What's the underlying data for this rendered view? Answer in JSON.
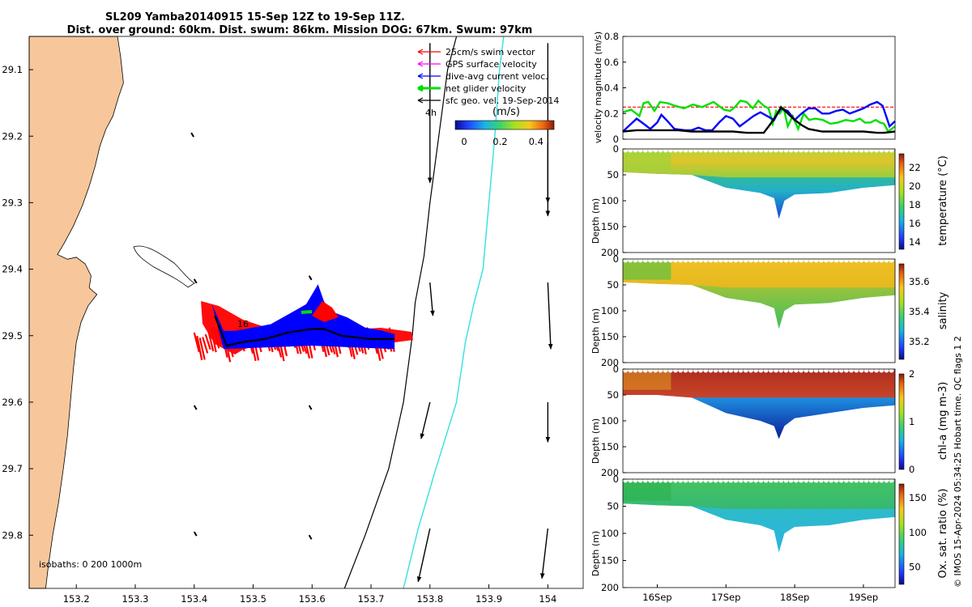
{
  "title": {
    "line1": "SL209 Yamba20140915 15-Sep 12Z to 19-Sep 11Z.",
    "line2": "Dist. over ground: 60km. Dist. swum: 86km. Mission DOG: 67km. Swum: 97km"
  },
  "footer_note": "© IMOS 15-Apr-2024 05:34:25 Hobart time. QC flags 1  2",
  "colors": {
    "land": "#f7c79b",
    "track_red": "#ff0000",
    "track_blue": "#0000ff",
    "track_green": "#00e000",
    "cyan_line": "#34e0e0",
    "velocity_ref": "#ff0000"
  },
  "chart_data": [
    {
      "type": "map",
      "ylim": [
        29.88,
        29.05
      ],
      "xlim": [
        153.12,
        154.06
      ],
      "x_ticks": [
        "153.2",
        "153.3",
        "153.4",
        "153.5",
        "153.6",
        "153.7",
        "153.8",
        "153.9",
        "154"
      ],
      "x_tick_values": [
        153.2,
        153.3,
        153.4,
        153.5,
        153.6,
        153.7,
        153.8,
        153.9,
        154.0
      ],
      "y_ticks": [
        "29.1",
        "29.2",
        "29.3",
        "29.4",
        "29.5",
        "29.6",
        "29.7",
        "29.8"
      ],
      "y_tick_values": [
        29.1,
        29.2,
        29.3,
        29.4,
        29.5,
        29.6,
        29.7,
        29.8
      ],
      "legend": [
        {
          "label": "25cm/s swim vector",
          "color": "#ff0000"
        },
        {
          "label": "GPS surface velocity",
          "color": "#ff00ff"
        },
        {
          "label": "dive-avg current veloc.",
          "color": "#0000ff"
        },
        {
          "label": "net glider velocity",
          "color": "#00e000"
        },
        {
          "label": "sfc geo. vel. 19-Sep-2014",
          "color": "#000000"
        }
      ],
      "colorbar": {
        "label": "(m/s)",
        "ticks": [
          "0",
          "0.2",
          "0.4"
        ],
        "tick_values": [
          0,
          0.2,
          0.4
        ],
        "range": [
          -0.05,
          0.5
        ]
      },
      "annotations": [
        "4h",
        "16"
      ],
      "isobath_label": "isobaths: 0   200  1000m",
      "coastline": [
        [
          153.27,
          29.05
        ],
        [
          153.275,
          29.08
        ],
        [
          153.28,
          29.12
        ],
        [
          153.272,
          29.14
        ],
        [
          153.262,
          29.17
        ],
        [
          153.25,
          29.19
        ],
        [
          153.24,
          29.215
        ],
        [
          153.232,
          29.245
        ],
        [
          153.222,
          29.275
        ],
        [
          153.21,
          29.305
        ],
        [
          153.195,
          29.335
        ],
        [
          153.18,
          29.36
        ],
        [
          153.168,
          29.378
        ],
        [
          153.185,
          29.385
        ],
        [
          153.2,
          29.382
        ],
        [
          153.215,
          29.392
        ],
        [
          153.225,
          29.41
        ],
        [
          153.222,
          29.428
        ],
        [
          153.228,
          29.433
        ],
        [
          153.235,
          29.438
        ],
        [
          153.22,
          29.455
        ],
        [
          153.208,
          29.48
        ],
        [
          153.2,
          29.51
        ],
        [
          153.195,
          29.55
        ],
        [
          153.19,
          29.6
        ],
        [
          153.185,
          29.65
        ],
        [
          153.178,
          29.7
        ],
        [
          153.17,
          29.75
        ],
        [
          153.16,
          29.8
        ],
        [
          153.152,
          29.85
        ],
        [
          153.148,
          29.88
        ]
      ],
      "isobath_200m": [
        [
          153.655,
          29.88
        ],
        [
          153.69,
          29.8
        ],
        [
          153.73,
          29.7
        ],
        [
          153.755,
          29.6
        ],
        [
          153.77,
          29.5
        ],
        [
          153.775,
          29.45
        ],
        [
          153.79,
          29.38
        ],
        [
          153.8,
          29.3
        ],
        [
          153.815,
          29.2
        ],
        [
          153.83,
          29.1
        ],
        [
          153.845,
          29.05
        ]
      ],
      "isobath_1000m": [
        [
          153.755,
          29.88
        ],
        [
          153.78,
          29.79
        ],
        [
          153.81,
          29.7
        ],
        [
          153.845,
          29.6
        ],
        [
          153.86,
          29.51
        ],
        [
          153.875,
          29.45
        ],
        [
          153.89,
          29.4
        ],
        [
          153.9,
          29.3
        ],
        [
          153.91,
          29.2
        ],
        [
          153.918,
          29.1
        ],
        [
          153.925,
          29.05
        ]
      ],
      "glider_track_blue": [
        [
          153.43,
          29.46
        ],
        [
          153.44,
          29.48
        ],
        [
          153.45,
          29.5
        ],
        [
          153.47,
          29.5
        ],
        [
          153.5,
          29.495
        ],
        [
          153.53,
          29.49
        ],
        [
          153.56,
          29.475
        ],
        [
          153.59,
          29.46
        ],
        [
          153.61,
          29.43
        ],
        [
          153.62,
          29.455
        ],
        [
          153.63,
          29.47
        ],
        [
          153.66,
          29.48
        ],
        [
          153.69,
          29.495
        ],
        [
          153.72,
          29.5
        ],
        [
          153.74,
          29.505
        ]
      ],
      "glider_track_black": [
        [
          153.435,
          29.47
        ],
        [
          153.455,
          29.515
        ],
        [
          153.48,
          29.51
        ],
        [
          153.52,
          29.505
        ],
        [
          153.56,
          29.495
        ],
        [
          153.6,
          29.49
        ],
        [
          153.62,
          29.49
        ],
        [
          153.65,
          29.5
        ],
        [
          153.7,
          29.505
        ],
        [
          153.74,
          29.505
        ]
      ],
      "current_vectors_start": [
        [
          153.8,
          29.06
        ],
        [
          154.0,
          29.06
        ],
        [
          154.0,
          29.21
        ],
        [
          153.8,
          29.42
        ],
        [
          154.0,
          29.42
        ],
        [
          153.8,
          29.6
        ],
        [
          154.0,
          29.6
        ],
        [
          153.8,
          29.79
        ],
        [
          154.0,
          29.79
        ]
      ],
      "current_vectors_end": [
        [
          153.8,
          29.27
        ],
        [
          154.0,
          29.3
        ],
        [
          154.0,
          29.32
        ],
        [
          153.805,
          29.47
        ],
        [
          154.005,
          29.52
        ],
        [
          153.785,
          29.655
        ],
        [
          154.0,
          29.66
        ],
        [
          153.78,
          29.87
        ],
        [
          153.99,
          29.865
        ]
      ],
      "small_vectors": [
        [
          153.395,
          29.195
        ],
        [
          153.4,
          29.415
        ],
        [
          153.595,
          29.41
        ],
        [
          153.4,
          29.605
        ],
        [
          153.595,
          29.605
        ],
        [
          153.4,
          29.795
        ],
        [
          153.595,
          29.8
        ]
      ]
    },
    {
      "type": "line",
      "ylabel": "velocity magnitude (m/s)",
      "ylim": [
        0,
        0.8
      ],
      "y_ticks": [
        "0",
        "0.2",
        "0.4",
        "0.6",
        "0.8"
      ],
      "y_tick_values": [
        0,
        0.2,
        0.4,
        0.6,
        0.8
      ],
      "x_ticks": [
        "16Sep",
        "17Sep",
        "18Sep",
        "19Sep"
      ],
      "xlim_days": [
        15.5,
        19.46
      ],
      "reference_line": 0.25,
      "series": [
        {
          "color": "#00e000",
          "x": [
            15.5,
            15.62,
            15.74,
            15.8,
            15.87,
            15.96,
            16.04,
            16.15,
            16.26,
            16.39,
            16.52,
            16.65,
            16.82,
            16.97,
            17.06,
            17.13,
            17.21,
            17.3,
            17.39,
            17.47,
            17.55,
            17.62,
            17.68,
            17.73,
            17.78,
            17.84,
            17.9,
            17.97,
            18.05,
            18.13,
            18.21,
            18.3,
            18.41,
            18.52,
            18.63,
            18.74,
            18.85,
            18.95,
            19.02,
            19.1,
            19.18,
            19.24,
            19.3,
            19.36,
            19.46
          ],
          "y": [
            0.21,
            0.23,
            0.18,
            0.28,
            0.29,
            0.22,
            0.29,
            0.28,
            0.26,
            0.24,
            0.27,
            0.25,
            0.29,
            0.23,
            0.22,
            0.25,
            0.3,
            0.29,
            0.24,
            0.3,
            0.26,
            0.24,
            0.12,
            0.22,
            0.2,
            0.24,
            0.1,
            0.18,
            0.08,
            0.2,
            0.15,
            0.16,
            0.15,
            0.12,
            0.13,
            0.15,
            0.14,
            0.16,
            0.13,
            0.13,
            0.15,
            0.13,
            0.12,
            0.06,
            0.1
          ]
        },
        {
          "color": "#0000ff",
          "x": [
            15.5,
            15.6,
            15.7,
            15.8,
            15.9,
            16.0,
            16.06,
            16.15,
            16.25,
            16.4,
            16.5,
            16.6,
            16.7,
            16.8,
            16.9,
            17.0,
            17.1,
            17.2,
            17.3,
            17.4,
            17.5,
            17.6,
            17.7,
            17.75,
            17.8,
            17.9,
            18.0,
            18.1,
            18.2,
            18.3,
            18.4,
            18.5,
            18.6,
            18.7,
            18.8,
            18.9,
            19.0,
            19.1,
            19.2,
            19.28,
            19.33,
            19.38,
            19.46
          ],
          "y": [
            0.06,
            0.11,
            0.16,
            0.12,
            0.08,
            0.13,
            0.19,
            0.14,
            0.08,
            0.07,
            0.07,
            0.09,
            0.07,
            0.07,
            0.13,
            0.18,
            0.16,
            0.1,
            0.14,
            0.18,
            0.21,
            0.18,
            0.15,
            0.2,
            0.24,
            0.22,
            0.15,
            0.2,
            0.24,
            0.24,
            0.2,
            0.2,
            0.22,
            0.23,
            0.2,
            0.22,
            0.24,
            0.27,
            0.29,
            0.26,
            0.18,
            0.1,
            0.14
          ]
        },
        {
          "color": "#000000",
          "x": [
            15.5,
            15.7,
            15.9,
            16.1,
            16.3,
            16.5,
            16.7,
            16.9,
            17.1,
            17.3,
            17.5,
            17.55,
            17.65,
            17.75,
            17.8,
            17.9,
            18.0,
            18.1,
            18.2,
            18.4,
            18.6,
            18.8,
            19.0,
            19.2,
            19.3,
            19.46
          ],
          "y": [
            0.06,
            0.07,
            0.07,
            0.07,
            0.07,
            0.06,
            0.06,
            0.06,
            0.06,
            0.05,
            0.05,
            0.05,
            0.12,
            0.2,
            0.25,
            0.2,
            0.15,
            0.11,
            0.08,
            0.06,
            0.06,
            0.06,
            0.06,
            0.05,
            0.05,
            0.06
          ]
        }
      ]
    },
    {
      "type": "heatmap",
      "name": "temperature",
      "label": "temperature (°C)",
      "ylabel": "Depth (m)",
      "ylim": [
        200,
        0
      ],
      "y_ticks": [
        "0",
        "50",
        "100",
        "150",
        "200"
      ],
      "colorbar_ticks": [
        "14",
        "16",
        "18",
        "20",
        "22"
      ],
      "colorbar_values": [
        14,
        16,
        18,
        20,
        22
      ],
      "crange": [
        13.2,
        23.5
      ],
      "profile_depth": [
        [
          15.5,
          45
        ],
        [
          16.0,
          48
        ],
        [
          16.5,
          50
        ],
        [
          17.0,
          75
        ],
        [
          17.5,
          85
        ],
        [
          17.7,
          95
        ],
        [
          17.77,
          135
        ],
        [
          17.85,
          100
        ],
        [
          18.0,
          88
        ],
        [
          18.5,
          85
        ],
        [
          19.0,
          75
        ],
        [
          19.46,
          70
        ]
      ],
      "color_stops": [
        [
          0,
          "#7fcf3a"
        ],
        [
          0.3,
          "#f0c020"
        ],
        [
          0.7,
          "#e8c020"
        ],
        [
          1,
          "#e8c030"
        ]
      ]
    },
    {
      "type": "heatmap",
      "name": "salinity",
      "label": "salinity",
      "ylabel": "Depth (m)",
      "ylim": [
        200,
        0
      ],
      "y_ticks": [
        "0",
        "50",
        "100",
        "150",
        "200"
      ],
      "colorbar_ticks": [
        "35.2",
        "35.4",
        "35.6"
      ],
      "colorbar_values": [
        35.2,
        35.4,
        35.6
      ],
      "crange": [
        35.08,
        35.72
      ],
      "profile_depth": [
        [
          15.5,
          45
        ],
        [
          16.0,
          48
        ],
        [
          16.5,
          50
        ],
        [
          17.0,
          75
        ],
        [
          17.5,
          85
        ],
        [
          17.7,
          95
        ],
        [
          17.77,
          135
        ],
        [
          17.85,
          100
        ],
        [
          18.0,
          88
        ],
        [
          18.5,
          85
        ],
        [
          19.0,
          75
        ],
        [
          19.46,
          70
        ]
      ]
    },
    {
      "type": "heatmap",
      "name": "chl-a",
      "label": "chl-a (mg m-3)",
      "ylabel": "Depth (m)",
      "ylim": [
        200,
        0
      ],
      "y_ticks": [
        "0",
        "50",
        "100",
        "150",
        "200"
      ],
      "colorbar_ticks": [
        "0",
        "1",
        "2"
      ],
      "colorbar_values": [
        0,
        1,
        2
      ],
      "crange": [
        0,
        2
      ],
      "profile_depth": [
        [
          15.5,
          50
        ],
        [
          16.0,
          50
        ],
        [
          16.5,
          55
        ],
        [
          17.0,
          85
        ],
        [
          17.5,
          100
        ],
        [
          17.7,
          110
        ],
        [
          17.77,
          135
        ],
        [
          17.85,
          110
        ],
        [
          18.0,
          95
        ],
        [
          18.5,
          85
        ],
        [
          19.0,
          75
        ],
        [
          19.46,
          70
        ]
      ]
    },
    {
      "type": "heatmap",
      "name": "oxygen",
      "label": "Ox. sat. ratio (%)",
      "ylabel": "Depth (m)",
      "ylim": [
        200,
        0
      ],
      "y_ticks": [
        "0",
        "50",
        "100",
        "150",
        "200"
      ],
      "colorbar_ticks": [
        "50",
        "100",
        "150"
      ],
      "colorbar_values": [
        50,
        100,
        150
      ],
      "crange": [
        25,
        170
      ],
      "profile_depth": [
        [
          15.5,
          45
        ],
        [
          16.0,
          48
        ],
        [
          16.5,
          50
        ],
        [
          17.0,
          75
        ],
        [
          17.5,
          85
        ],
        [
          17.7,
          95
        ],
        [
          17.77,
          135
        ],
        [
          17.85,
          100
        ],
        [
          18.0,
          88
        ],
        [
          18.5,
          85
        ],
        [
          19.0,
          75
        ],
        [
          19.46,
          70
        ]
      ]
    }
  ]
}
